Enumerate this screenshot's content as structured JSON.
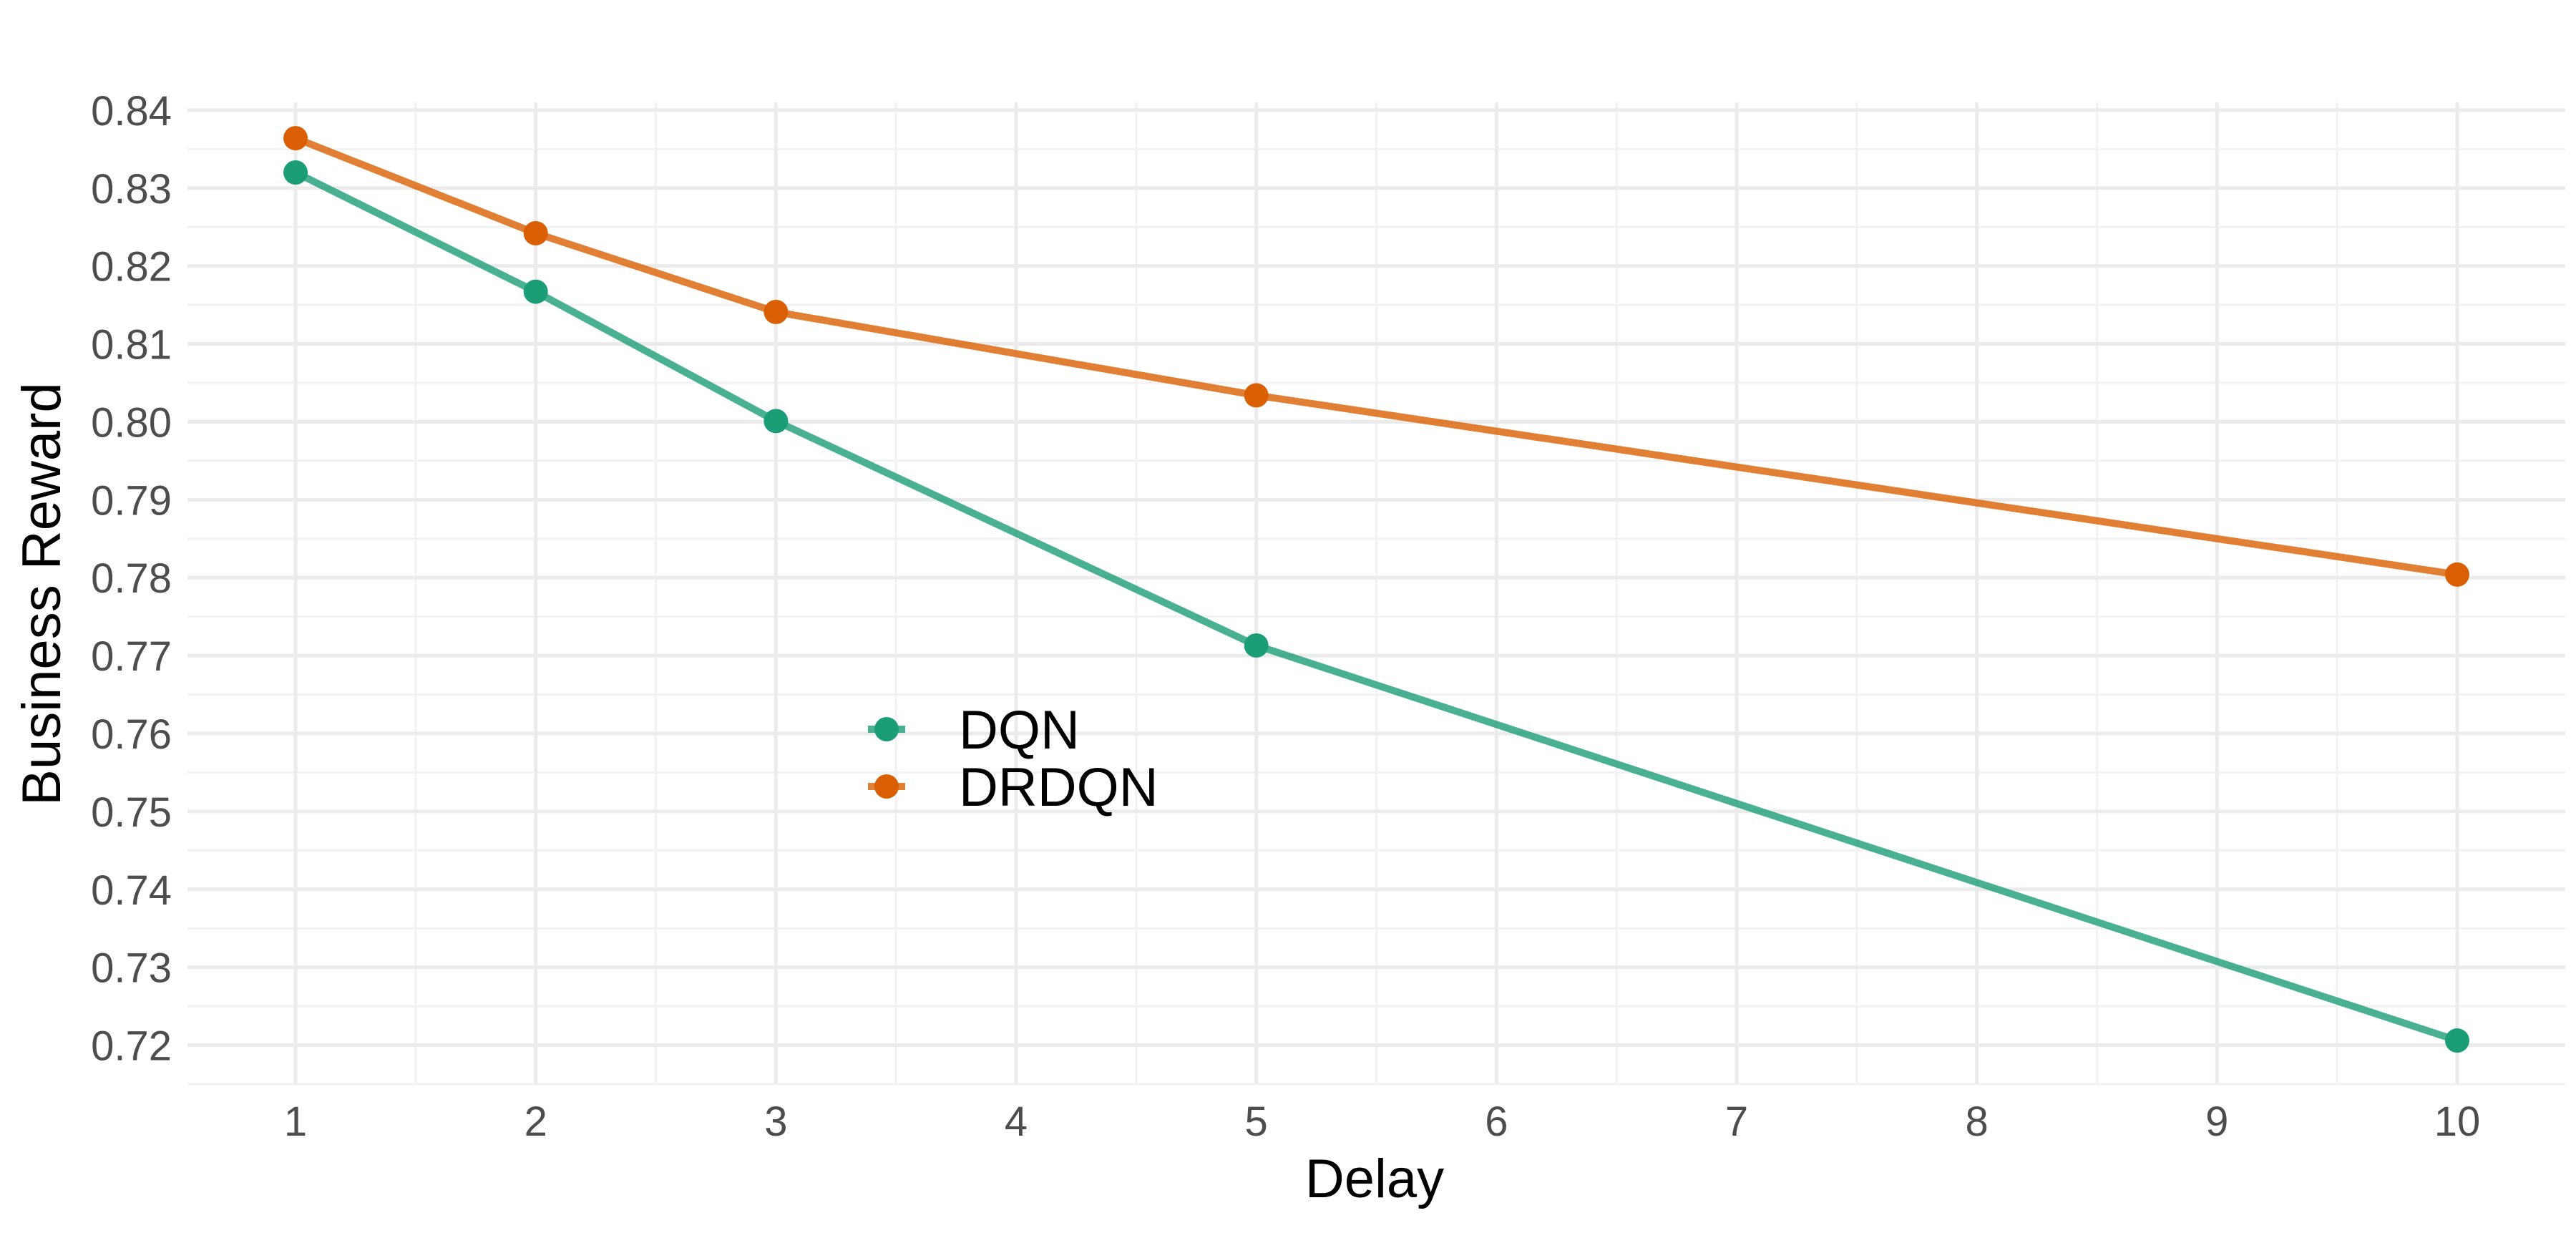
{
  "chart_data": {
    "type": "line",
    "title": "",
    "xlabel": "Delay",
    "ylabel": "Business Reward",
    "x": [
      1,
      2,
      3,
      5,
      10
    ],
    "series": [
      {
        "name": "DQN",
        "color": "#1B9E77",
        "values": [
          0.832,
          0.8167,
          0.8001,
          0.7713,
          0.7206
        ]
      },
      {
        "name": "DRDQN",
        "color": "#D95F02",
        "values": [
          0.8364,
          0.8242,
          0.8141,
          0.8034,
          0.7804
        ]
      }
    ],
    "xlim": [
      0.55,
      10.45
    ],
    "ylim": [
      0.715,
      0.841
    ],
    "x_ticks": [
      1,
      2,
      3,
      4,
      5,
      6,
      7,
      8,
      9,
      10
    ],
    "x_tick_labels": [
      "1",
      "2",
      "3",
      "4",
      "5",
      "6",
      "7",
      "8",
      "9",
      "10"
    ],
    "y_ticks": [
      0.72,
      0.73,
      0.74,
      0.75,
      0.76,
      0.77,
      0.78,
      0.79,
      0.8,
      0.81,
      0.82,
      0.83,
      0.84
    ],
    "y_tick_labels": [
      "0.72",
      "0.73",
      "0.74",
      "0.75",
      "0.76",
      "0.77",
      "0.78",
      "0.79",
      "0.80",
      "0.81",
      "0.82",
      "0.83",
      "0.84"
    ],
    "grid": true,
    "legend": {
      "position": "inside-center-left",
      "entries": [
        "DQN",
        "DRDQN"
      ]
    }
  }
}
